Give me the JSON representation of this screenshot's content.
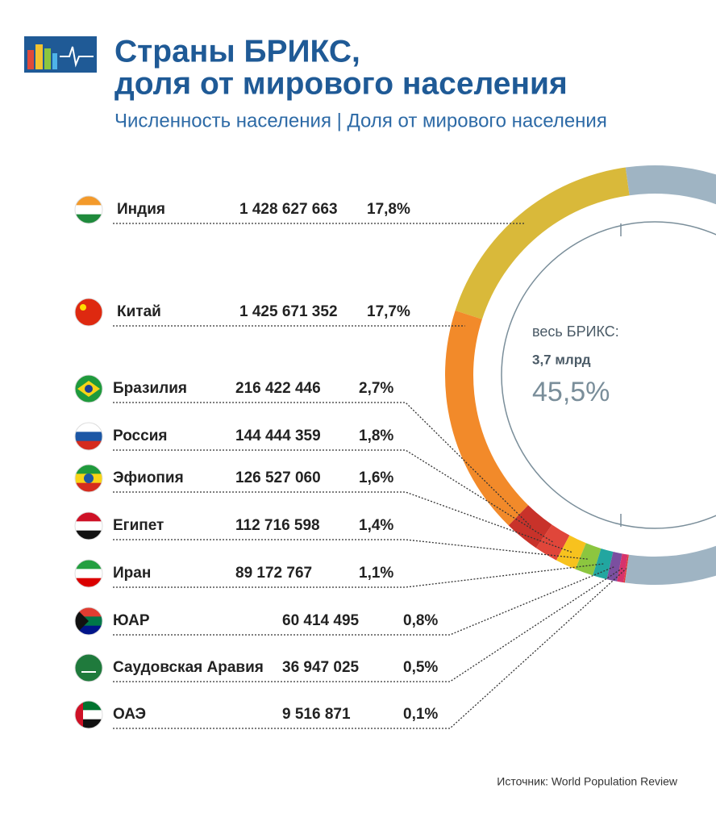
{
  "chart_data": {
    "type": "donut",
    "title": [
      "Страны БРИКС,",
      "доля от мирового населения"
    ],
    "subtitle": "Численность населения | Доля от мирового населения",
    "categories": [
      "Индия",
      "Китай",
      "Бразилия",
      "Россия",
      "Эфиопия",
      "Египет",
      "Иран",
      "ЮАР",
      "Саудовская Аравия",
      "ОАЭ"
    ],
    "population": [
      1428627663,
      1425671352,
      216422446,
      144444359,
      126527060,
      112716598,
      89172767,
      60414495,
      36947025,
      9516871
    ],
    "population_labels": [
      "1 428 627 663",
      "1 425 671 352",
      "216 422 446",
      "144 444 359",
      "126 527 060",
      "112 716 598",
      "89 172 767",
      "60 414 495",
      "36 947 025",
      "9 516 871"
    ],
    "values": [
      17.8,
      17.7,
      2.7,
      1.8,
      1.6,
      1.4,
      1.1,
      0.8,
      0.5,
      0.1
    ],
    "value_labels": [
      "17,8%",
      "17,7%",
      "2,7%",
      "1,8%",
      "1,6%",
      "1,4%",
      "1,1%",
      "0,8%",
      "0,5%",
      "0,1%"
    ],
    "colors": [
      "#d9b93a",
      "#f28a2a",
      "#c8322a",
      "#e0463a",
      "#f7c21e",
      "#8cc63f",
      "#22a6a0",
      "#7b4fa0",
      "#d6336c",
      "#e53935"
    ],
    "rest_color": "#9fb4c3",
    "center_label": "весь БРИКС:",
    "total_population": {
      "value": 3.7,
      "label": "3,7 млрд"
    },
    "total_share": {
      "value": 45.5,
      "label": "45,5%"
    },
    "source": "Источник: World Population Review"
  }
}
